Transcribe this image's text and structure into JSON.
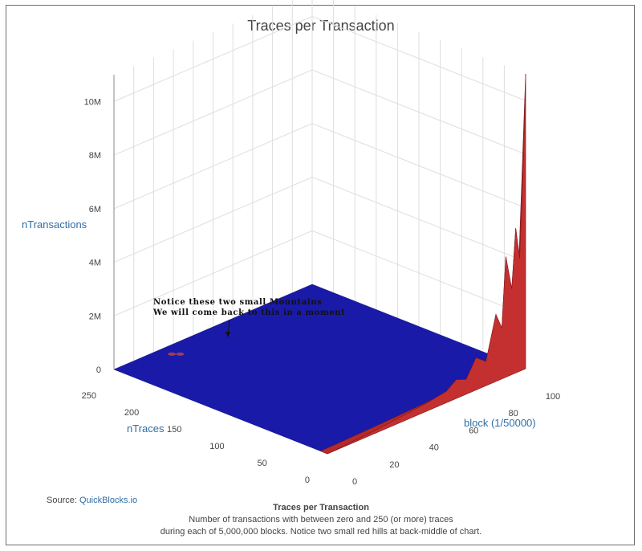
{
  "chart_data": {
    "type": "3d-surface",
    "title": "Traces per Transaction",
    "z_axis": {
      "label": "nTransactions",
      "ticks": [
        "0",
        "2M",
        "4M",
        "6M",
        "8M",
        "10M"
      ],
      "range": [
        0,
        11000000
      ]
    },
    "y_axis": {
      "label": "nTraces",
      "ticks": [
        "0",
        "50",
        "100",
        "150",
        "200",
        "250"
      ],
      "range": [
        0,
        250
      ]
    },
    "x_axis": {
      "label": "block (1/50000)",
      "ticks": [
        "0",
        "20",
        "40",
        "60",
        "80",
        "100"
      ],
      "range": [
        0,
        100
      ]
    },
    "surface": {
      "description_rows": "nTraces = 0 edge (front-right) carries the large values; rest of surface is near 0",
      "nTraces0_profile": {
        "block": [
          0,
          10,
          20,
          30,
          40,
          50,
          60,
          65,
          70,
          75,
          80,
          85,
          88,
          90,
          93,
          95,
          97,
          99,
          100
        ],
        "nTransactions": [
          0,
          40000,
          90000,
          150000,
          220000,
          300000,
          420000,
          700000,
          550000,
          1200000,
          900000,
          2500000,
          1900000,
          4500000,
          3200000,
          5400000,
          4200000,
          8000000,
          11000000
        ]
      },
      "small_hills": [
        {
          "block": 2,
          "nTraces": 200,
          "nTransactions": 80000
        },
        {
          "block": 4,
          "nTraces": 195,
          "nTransactions": 60000
        }
      ],
      "colorscale": [
        "#1a1aa8",
        "#b52a2a"
      ]
    },
    "annotation": {
      "lines": [
        "Notice these two small Mountains",
        "We will come back to this in a moment"
      ]
    },
    "grid": true
  },
  "source": {
    "prefix": "Source: ",
    "link_text": "QuickBlocks.io"
  },
  "caption": {
    "title": "Traces per Transaction",
    "line1": "Number of transactions with between zero and 250 (or more) traces",
    "line2": "during each of 5,000,000 blocks. Notice two small red hills at back-middle of chart."
  }
}
